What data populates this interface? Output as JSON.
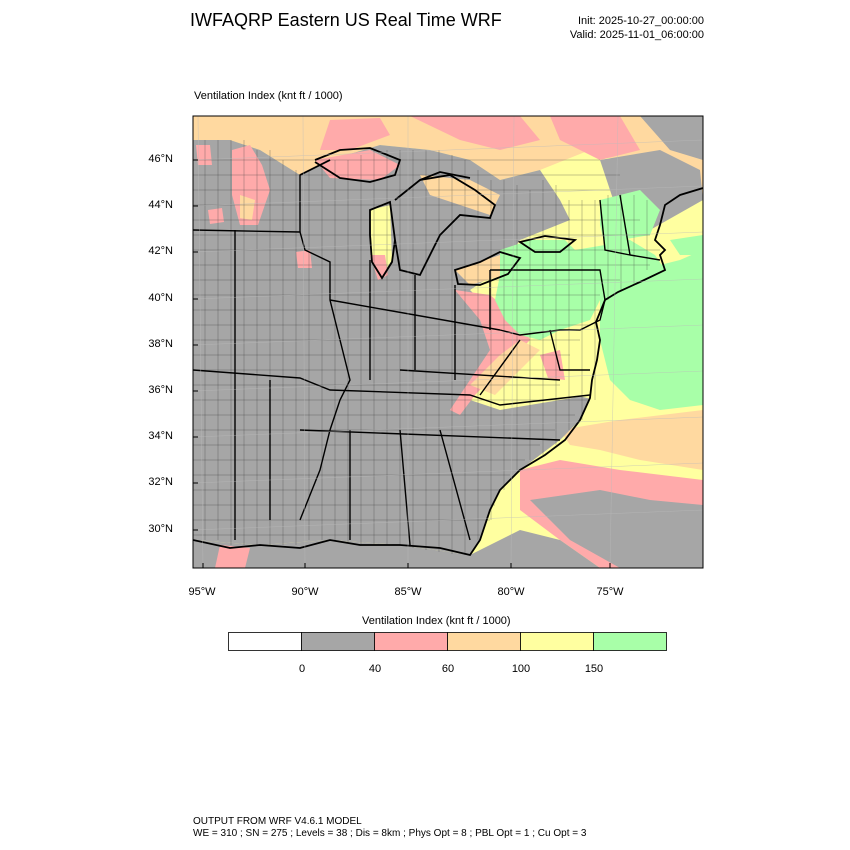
{
  "header": {
    "title": "IWFAQRP Eastern US Real Time WRF",
    "init": "Init: 2025-10-27_00:00:00",
    "valid": "Valid: 2025-11-01_06:00:00"
  },
  "map": {
    "caption": "Ventilation Index   (knt ft / 1000)",
    "lat_labels": [
      "46°N",
      "44°N",
      "42°N",
      "40°N",
      "38°N",
      "36°N",
      "34°N",
      "32°N",
      "30°N"
    ],
    "lon_labels": [
      "95°W",
      "90°W",
      "85°W",
      "80°W",
      "75°W"
    ]
  },
  "legend": {
    "title": "Ventilation Index  (knt ft / 1000)",
    "ticks": [
      "0",
      "40",
      "60",
      "100",
      "150"
    ],
    "colors": [
      "#ffffff",
      "#a6a6a6",
      "#ffaaaa",
      "#ffd9a0",
      "#ffffa0",
      "#a8ffa8"
    ]
  },
  "footer": {
    "line1": "OUTPUT FROM WRF V4.6.1 MODEL",
    "line2": "WE = 310 ; SN = 275 ; Levels = 38 ; Dis = 8km ; Phys Opt = 8 ; PBL Opt = 1 ; Cu Opt = 3"
  }
}
